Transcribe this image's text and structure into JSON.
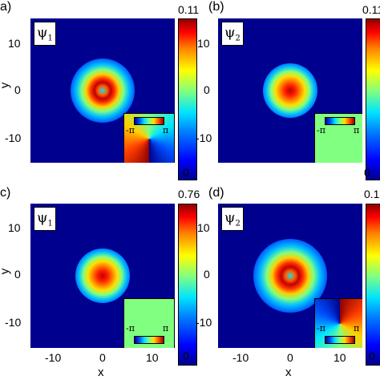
{
  "panels": [
    {
      "label": "a)",
      "psi": "ψ",
      "sub": "1",
      "cbar_max": "0.11",
      "cbar_min": "0",
      "inset_left": "-π",
      "inset_right": "π"
    },
    {
      "label": "(b)",
      "psi": "ψ",
      "sub": "2",
      "cbar_max": "0.11",
      "cbar_min": "0",
      "inset_left": "-π",
      "inset_right": "π"
    },
    {
      "label": "c)",
      "psi": "ψ",
      "sub": "1",
      "cbar_max": "0.76",
      "cbar_min": "0",
      "inset_left": "-π",
      "inset_right": "π"
    },
    {
      "label": "(d)",
      "psi": "ψ",
      "sub": "2",
      "cbar_max": "0.1",
      "cbar_min": "0",
      "inset_left": "-π",
      "inset_right": "π"
    }
  ],
  "axes": {
    "y_ticks": [
      "10",
      "0",
      "-10"
    ],
    "x_ticks": [
      "-10",
      "0",
      "10"
    ],
    "xlabel": "x",
    "ylabel": "y"
  },
  "colors": {
    "background": "#00008f",
    "inset_uniform": "#80ff80"
  }
}
